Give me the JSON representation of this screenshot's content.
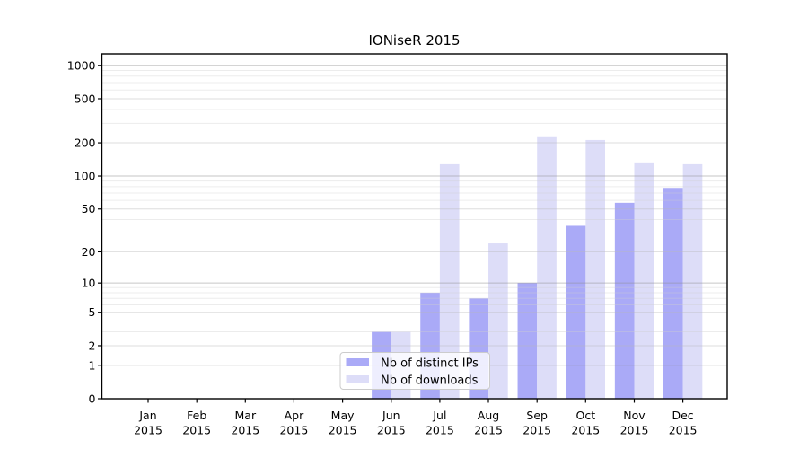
{
  "chart_data": {
    "type": "bar",
    "title": "IONiseR 2015",
    "categories": [
      "Jan",
      "Feb",
      "Mar",
      "Apr",
      "May",
      "Jun",
      "Jul",
      "Aug",
      "Sep",
      "Oct",
      "Nov",
      "Dec"
    ],
    "x_tick_year": "2015",
    "series": [
      {
        "name": "Nb of distinct IPs",
        "color": "#aaaaf7",
        "values": [
          0,
          0,
          0,
          0,
          0,
          3,
          8,
          7,
          10,
          35,
          57,
          78
        ]
      },
      {
        "name": "Nb of downloads",
        "color": "#ddddf8",
        "values": [
          0,
          0,
          0,
          0,
          0,
          3,
          128,
          24,
          225,
          212,
          133,
          128
        ]
      }
    ],
    "y_scale": "log1p",
    "y_ticks": [
      0,
      1,
      2,
      5,
      10,
      20,
      50,
      100,
      200,
      500,
      1000
    ],
    "y_decade_ticks": [
      1,
      10,
      100,
      1000
    ],
    "y_max": 1000,
    "ylim": [
      0,
      1000
    ],
    "grid": "on",
    "legend_position": "lower center",
    "colors": {
      "axis": "#000000",
      "tick_label": "#000000",
      "grid_decade": "#8f8f8f",
      "grid_mid": "#b8b8b8",
      "grid_minor": "#cfcfcf",
      "legend_border": "#cccccc",
      "plot_background": "#ffffff"
    }
  }
}
